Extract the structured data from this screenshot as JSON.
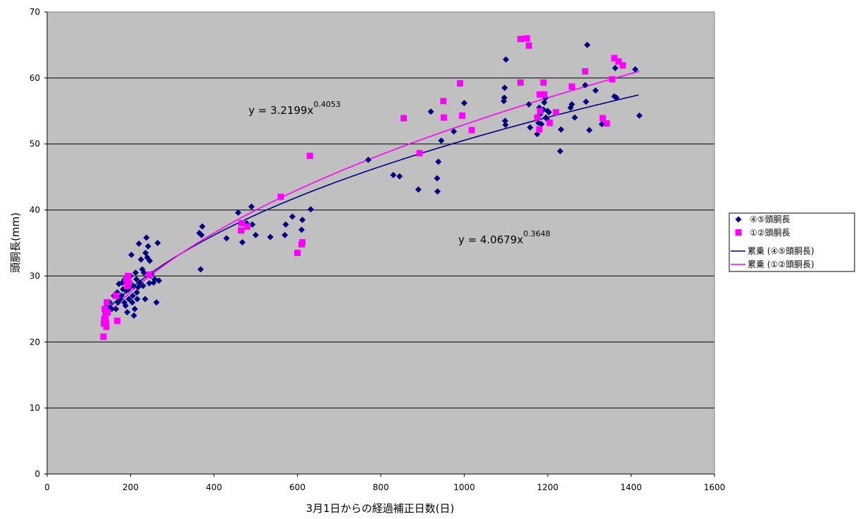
{
  "chart_data": {
    "type": "scatter",
    "xlabel": "3月1日からの経過補正日数(日)",
    "ylabel": "頭胴長(mm)",
    "xlim": [
      0,
      1600
    ],
    "ylim": [
      0,
      70
    ],
    "x_ticks": [
      0,
      200,
      400,
      600,
      800,
      1000,
      1200,
      1400,
      1600
    ],
    "y_ticks": [
      0,
      10,
      20,
      30,
      40,
      50,
      60,
      70
    ],
    "grid": "horizontal",
    "legend_position": "right",
    "background": "#c0c0c0",
    "series": [
      {
        "name": "④⑤頭胴長",
        "marker": "diamond",
        "color": "#000080",
        "points": [
          [
            140,
            24.5
          ],
          [
            145,
            25.5
          ],
          [
            150,
            26.0
          ],
          [
            155,
            25.0
          ],
          [
            160,
            27.0
          ],
          [
            165,
            25.0
          ],
          [
            168,
            27.5
          ],
          [
            170,
            26.0
          ],
          [
            172,
            28.8
          ],
          [
            175,
            26.5
          ],
          [
            178,
            27.0
          ],
          [
            180,
            29.0
          ],
          [
            182,
            28.0
          ],
          [
            185,
            26.0
          ],
          [
            186,
            29.5
          ],
          [
            188,
            25.5
          ],
          [
            190,
            27.8
          ],
          [
            192,
            24.5
          ],
          [
            195,
            28.0
          ],
          [
            196,
            26.5
          ],
          [
            198,
            29.0
          ],
          [
            200,
            30.0
          ],
          [
            202,
            33.2
          ],
          [
            204,
            26.0
          ],
          [
            205,
            27.0
          ],
          [
            206,
            28.5
          ],
          [
            208,
            24.0
          ],
          [
            210,
            25.0
          ],
          [
            212,
            30.5
          ],
          [
            214,
            29.5
          ],
          [
            215,
            27.5
          ],
          [
            216,
            26.5
          ],
          [
            218,
            28.3
          ],
          [
            220,
            34.9
          ],
          [
            222,
            29.0
          ],
          [
            225,
            32.5
          ],
          [
            228,
            31.0
          ],
          [
            230,
            28.5
          ],
          [
            232,
            30.5
          ],
          [
            235,
            26.5
          ],
          [
            236,
            33.5
          ],
          [
            238,
            35.8
          ],
          [
            240,
            32.8
          ],
          [
            242,
            34.5
          ],
          [
            245,
            28.9
          ],
          [
            246,
            32.3
          ],
          [
            248,
            30.0
          ],
          [
            250,
            30.3
          ],
          [
            255,
            29.0
          ],
          [
            258,
            29.5
          ],
          [
            262,
            26.0
          ],
          [
            265,
            35.0
          ],
          [
            268,
            29.3
          ],
          [
            365,
            36.5
          ],
          [
            368,
            31.0
          ],
          [
            370,
            36.2
          ],
          [
            372,
            37.5
          ],
          [
            430,
            35.7
          ],
          [
            458,
            39.6
          ],
          [
            468,
            35.1
          ],
          [
            478,
            38.0
          ],
          [
            490,
            40.5
          ],
          [
            492,
            37.8
          ],
          [
            500,
            36.2
          ],
          [
            535,
            35.9
          ],
          [
            570,
            36.2
          ],
          [
            572,
            37.8
          ],
          [
            588,
            39.0
          ],
          [
            610,
            37.0
          ],
          [
            612,
            38.5
          ],
          [
            632,
            40.1
          ],
          [
            770,
            47.6
          ],
          [
            830,
            45.3
          ],
          [
            845,
            45.1
          ],
          [
            890,
            43.1
          ],
          [
            920,
            54.9
          ],
          [
            935,
            44.8
          ],
          [
            936,
            42.8
          ],
          [
            938,
            47.3
          ],
          [
            945,
            50.5
          ],
          [
            975,
            51.9
          ],
          [
            1000,
            56.2
          ],
          [
            1095,
            56.5
          ],
          [
            1096,
            57.0
          ],
          [
            1097,
            58.5
          ],
          [
            1098,
            53.5
          ],
          [
            1099,
            52.9
          ],
          [
            1100,
            62.8
          ],
          [
            1155,
            56.0
          ],
          [
            1158,
            52.5
          ],
          [
            1175,
            51.5
          ],
          [
            1178,
            53.2
          ],
          [
            1180,
            55.5
          ],
          [
            1182,
            54.5
          ],
          [
            1185,
            53.0
          ],
          [
            1190,
            55.2
          ],
          [
            1192,
            56.3
          ],
          [
            1195,
            57.0
          ],
          [
            1196,
            54.0
          ],
          [
            1198,
            53.8
          ],
          [
            1200,
            55.0
          ],
          [
            1203,
            54.8
          ],
          [
            1230,
            48.9
          ],
          [
            1232,
            52.2
          ],
          [
            1255,
            55.5
          ],
          [
            1258,
            56.0
          ],
          [
            1265,
            54.0
          ],
          [
            1290,
            58.9
          ],
          [
            1292,
            56.4
          ],
          [
            1295,
            65.0
          ],
          [
            1300,
            52.1
          ],
          [
            1315,
            58.1
          ],
          [
            1330,
            53.0
          ],
          [
            1360,
            57.2
          ],
          [
            1362,
            61.5
          ],
          [
            1365,
            57.0
          ],
          [
            1410,
            61.3
          ],
          [
            1420,
            54.3
          ]
        ]
      },
      {
        "name": "①②頭胴長",
        "marker": "square",
        "color": "#ff00ff",
        "points": [
          [
            135,
            20.8
          ],
          [
            136,
            22.8
          ],
          [
            137,
            23.5
          ],
          [
            138,
            25.0
          ],
          [
            140,
            24.0
          ],
          [
            141,
            23.0
          ],
          [
            142,
            22.3
          ],
          [
            143,
            26.0
          ],
          [
            145,
            24.5
          ],
          [
            165,
            27.0
          ],
          [
            168,
            23.2
          ],
          [
            190,
            29.5
          ],
          [
            192,
            28.5
          ],
          [
            194,
            30.0
          ],
          [
            196,
            29.0
          ],
          [
            245,
            30.2
          ],
          [
            465,
            36.9
          ],
          [
            466,
            38.0
          ],
          [
            480,
            37.5
          ],
          [
            560,
            42.0
          ],
          [
            600,
            33.5
          ],
          [
            610,
            34.8
          ],
          [
            612,
            35.1
          ],
          [
            630,
            48.2
          ],
          [
            855,
            53.9
          ],
          [
            893,
            48.6
          ],
          [
            950,
            56.5
          ],
          [
            951,
            54.0
          ],
          [
            990,
            59.2
          ],
          [
            995,
            54.3
          ],
          [
            1018,
            52.1
          ],
          [
            1135,
            65.9
          ],
          [
            1150,
            66.0
          ],
          [
            1155,
            64.9
          ],
          [
            1135,
            59.3
          ],
          [
            1175,
            54.0
          ],
          [
            1180,
            52.2
          ],
          [
            1181,
            57.5
          ],
          [
            1182,
            55.0
          ],
          [
            1190,
            59.3
          ],
          [
            1192,
            57.5
          ],
          [
            1205,
            53.2
          ],
          [
            1220,
            54.8
          ],
          [
            1258,
            58.7
          ],
          [
            1290,
            61.0
          ],
          [
            1332,
            53.9
          ],
          [
            1342,
            53.1
          ],
          [
            1355,
            59.8
          ],
          [
            1360,
            63.0
          ],
          [
            1370,
            62.5
          ],
          [
            1380,
            61.9
          ]
        ]
      }
    ],
    "trendlines": [
      {
        "name": "累乗 (④⑤頭胴長)",
        "type": "power",
        "a": 4.0679,
        "b": 0.3648,
        "color": "#000080",
        "x_range": [
          138,
          1420
        ]
      },
      {
        "name": "累乗 (①②頭胴長)",
        "type": "power",
        "a": 3.2199,
        "b": 0.4053,
        "color": "#ff00ff",
        "x_range": [
          135,
          1420
        ]
      }
    ],
    "annotations": [
      {
        "base": "y = 3.2199x",
        "exp": "0.4053"
      },
      {
        "base": "y = 4.0679x",
        "exp": "0.3648"
      }
    ]
  }
}
